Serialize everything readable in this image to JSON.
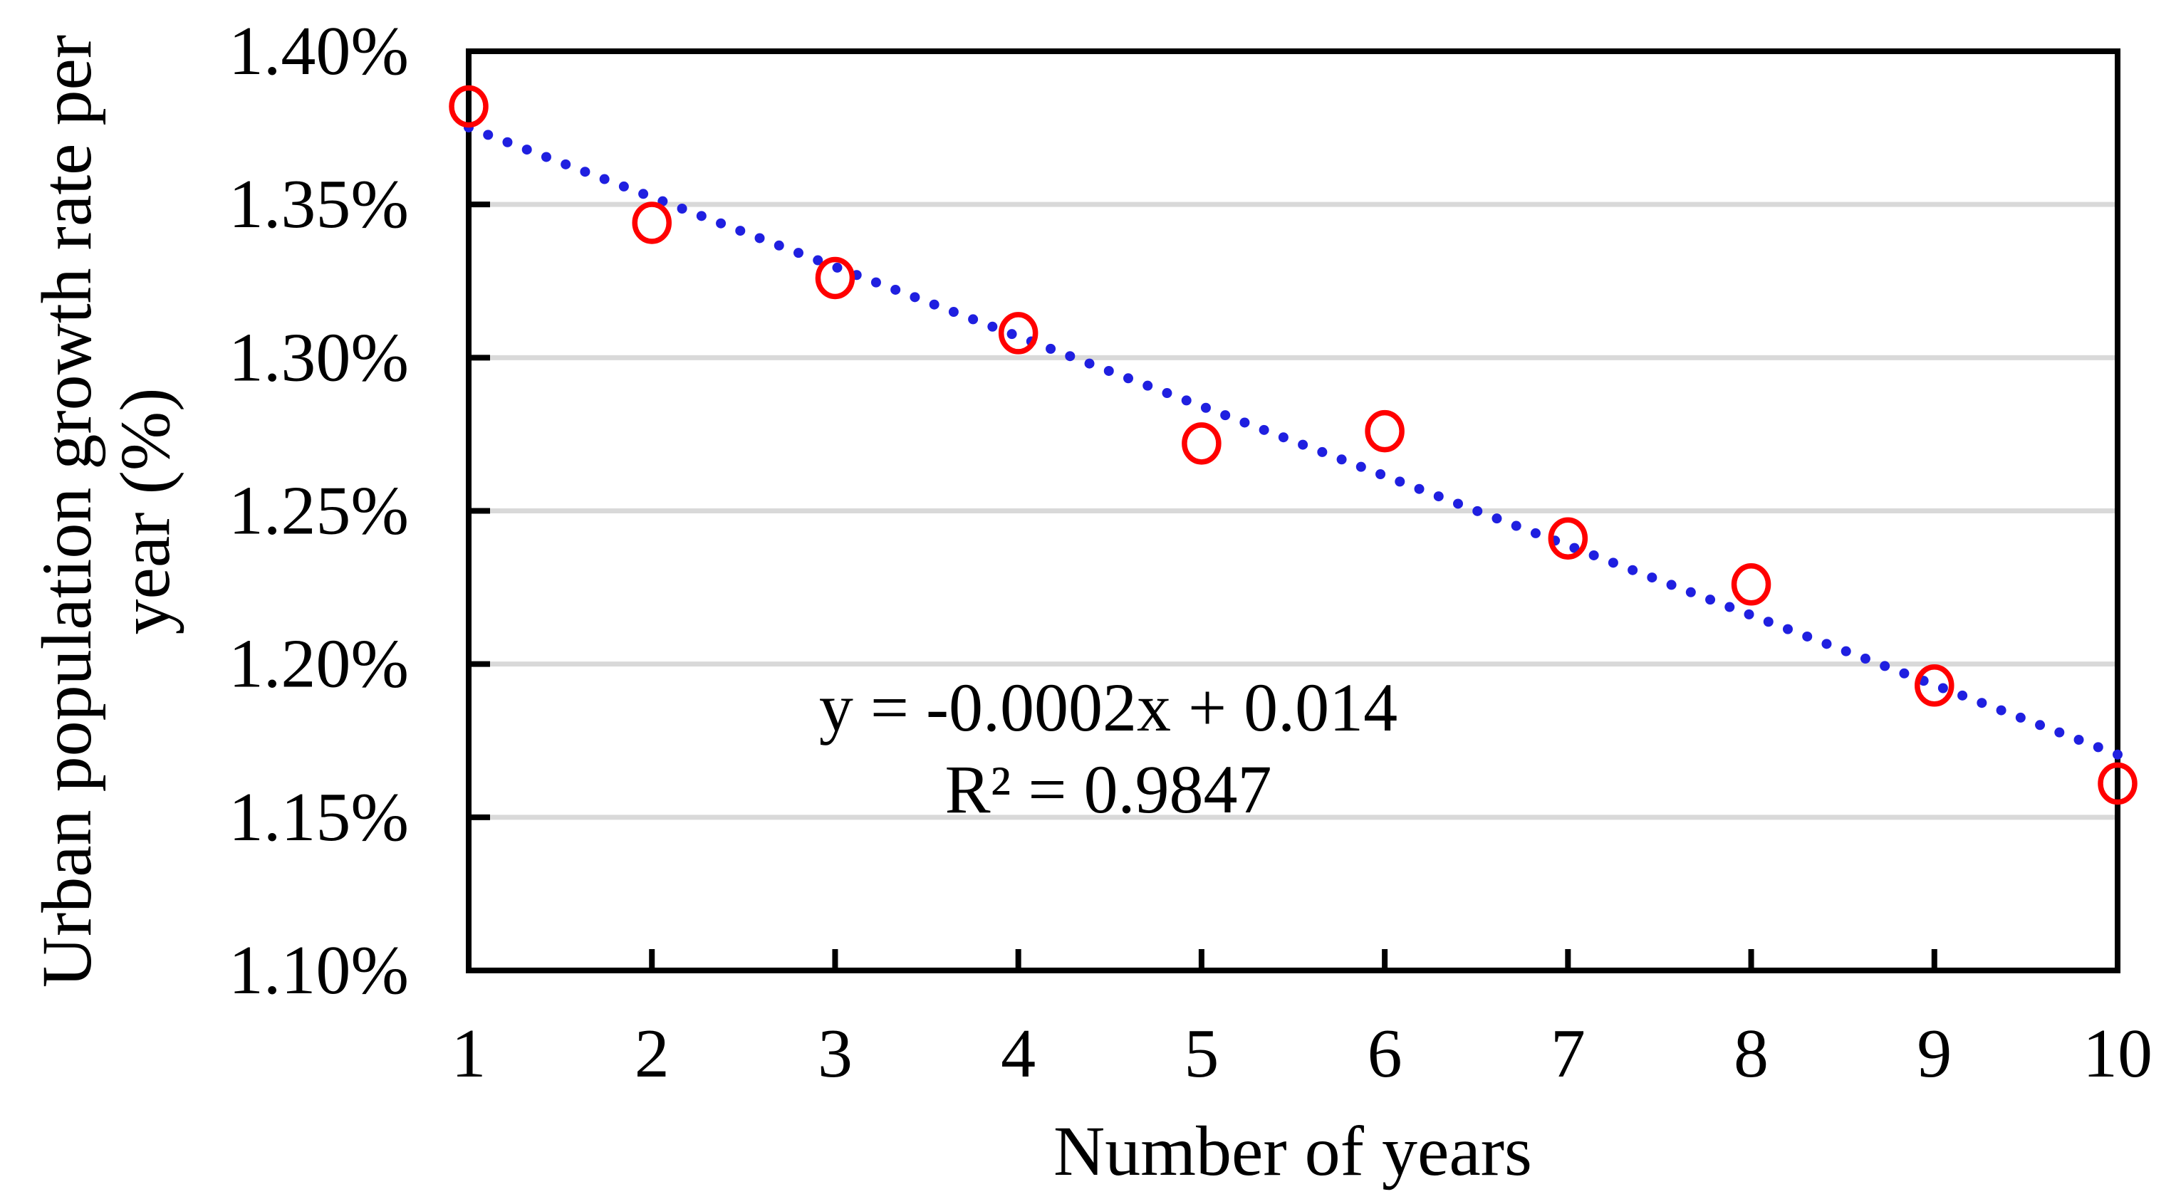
{
  "chart_data": {
    "type": "scatter",
    "title": "",
    "xlabel": "Number of years",
    "ylabel": "Urban population growth rate per year (%)",
    "ylabel_lines": [
      "Urban population growth rate per",
      "year (%)"
    ],
    "x": [
      1,
      2,
      3,
      4,
      5,
      6,
      7,
      8,
      9,
      10
    ],
    "series": [
      {
        "name": "Urban population growth rate per year",
        "marker": "open-circle",
        "color": "#ff0000",
        "values_percent": [
          1.382,
          1.344,
          1.326,
          1.308,
          1.272,
          1.276,
          1.241,
          1.226,
          1.193,
          1.161
        ]
      }
    ],
    "x_tick_labels": [
      "1",
      "2",
      "3",
      "4",
      "5",
      "6",
      "7",
      "8",
      "9",
      "10"
    ],
    "y_tick_labels": [
      "1.40%",
      "1.35%",
      "1.30%",
      "1.25%",
      "1.20%",
      "1.15%",
      "1.10%"
    ],
    "y_tick_values_percent": [
      1.4,
      1.35,
      1.3,
      1.25,
      1.2,
      1.15,
      1.1
    ],
    "xlim": [
      1,
      10
    ],
    "ylim_percent": [
      1.1,
      1.4
    ],
    "grid": "horizontal-major",
    "legend": "none",
    "trendline": {
      "type": "linear",
      "style": "dotted",
      "color": "#1f1fe0",
      "slope_percent_per_year": -0.02274,
      "intercept_percent": 1.39787,
      "equation": "y = -0.0002x + 0.014",
      "r_squared": "R² = 0.9847"
    },
    "colors": {
      "marker": "#ff0000",
      "trendline": "#1f1fe0",
      "gridline": "#d9d9d9",
      "axis": "#000000",
      "text": "#000000",
      "background": "#ffffff"
    }
  }
}
